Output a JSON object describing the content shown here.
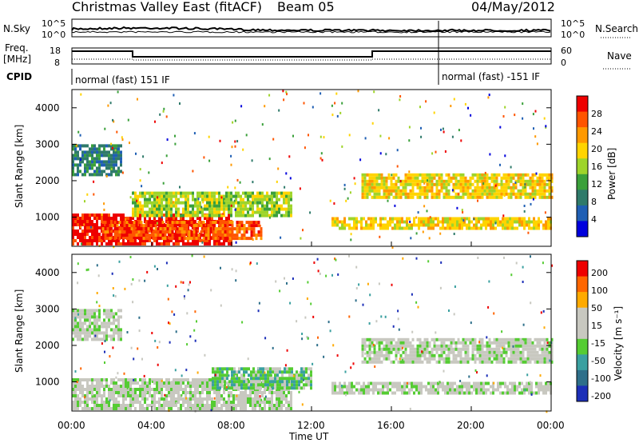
{
  "header": {
    "title": "Christmas Valley East (fitACF)",
    "beam": "Beam 05",
    "date": "04/May/2012"
  },
  "top_panels": {
    "nsky_label": "N.Sky",
    "nsky_ticks": [
      "10^5",
      "10^0"
    ],
    "nsearch_label": "N.Search",
    "freq_label_1": "Freq.",
    "freq_label_2": "[MHz]",
    "freq_ticks": [
      "18",
      "8"
    ],
    "nave_label": "Nave",
    "nave_ticks": [
      "60",
      "0"
    ],
    "cpid_label": "CPID",
    "cpid_segments": [
      "normal (fast) 151 IF",
      "normal (fast) -151 IF"
    ]
  },
  "colors": {
    "power_scale": [
      "#0000dd",
      "#1f5fb4",
      "#2f7a6a",
      "#3aa03a",
      "#9ed42a",
      "#ffd400",
      "#ff9900",
      "#ff5500",
      "#ee0000"
    ],
    "velocity_scale": [
      "#1c2fb8",
      "#2e6f8a",
      "#3aa0a0",
      "#55cc33",
      "#c8c8c0",
      "#c8c8c0",
      "#ffaa00",
      "#ff6600",
      "#ee0000"
    ]
  },
  "chart_data": [
    {
      "type": "heatmap",
      "name": "power",
      "ylabel": "Slant Range [km]",
      "yticks": [
        "1000",
        "2000",
        "3000",
        "4000"
      ],
      "colorbar_label": "Power [dB]",
      "colorbar_ticks": [
        "4",
        "8",
        "12",
        "16",
        "20",
        "24",
        "28"
      ],
      "ylim": [
        200,
        4500
      ],
      "bands": [
        {
          "t0": 0.0,
          "t1": 8.0,
          "r0": 300,
          "r1": 1100,
          "level": 8
        },
        {
          "t0": 1.5,
          "t1": 9.5,
          "r0": 400,
          "r1": 900,
          "level": 7
        },
        {
          "t0": 3.0,
          "t1": 11.0,
          "r0": 1000,
          "r1": 1700,
          "level": 4
        },
        {
          "t0": 13.0,
          "t1": 24.0,
          "r0": 700,
          "r1": 1000,
          "level": 5
        },
        {
          "t0": 14.5,
          "t1": 24.0,
          "r0": 1500,
          "r1": 2200,
          "level": 5
        },
        {
          "t0": 0.0,
          "t1": 2.5,
          "r0": 2200,
          "r1": 3000,
          "level": 2
        }
      ]
    },
    {
      "type": "heatmap",
      "name": "velocity",
      "ylabel": "Slant Range [km]",
      "yticks": [
        "1000",
        "2000",
        "3000",
        "4000"
      ],
      "colorbar_label": "Velocity [m s⁻¹]",
      "colorbar_ticks": [
        "200",
        "100",
        "50",
        "15",
        "-15",
        "-50",
        "-100",
        "-200"
      ],
      "ylim": [
        200,
        4500
      ],
      "bands": [
        {
          "t0": 0.0,
          "t1": 11.0,
          "r0": 300,
          "r1": 1100,
          "level": 4
        },
        {
          "t0": 7.0,
          "t1": 12.0,
          "r0": 800,
          "r1": 1400,
          "level": 3
        },
        {
          "t0": 13.0,
          "t1": 24.0,
          "r0": 700,
          "r1": 1000,
          "level": 4
        },
        {
          "t0": 14.5,
          "t1": 24.0,
          "r0": 1500,
          "r1": 2200,
          "level": 4
        },
        {
          "t0": 0.0,
          "t1": 2.5,
          "r0": 2200,
          "r1": 3000,
          "level": 4
        }
      ]
    }
  ],
  "x_axis": {
    "label": "Time UT",
    "ticks": [
      "00:00",
      "04:00",
      "08:00",
      "12:00",
      "16:00",
      "20:00",
      "00:00"
    ]
  }
}
